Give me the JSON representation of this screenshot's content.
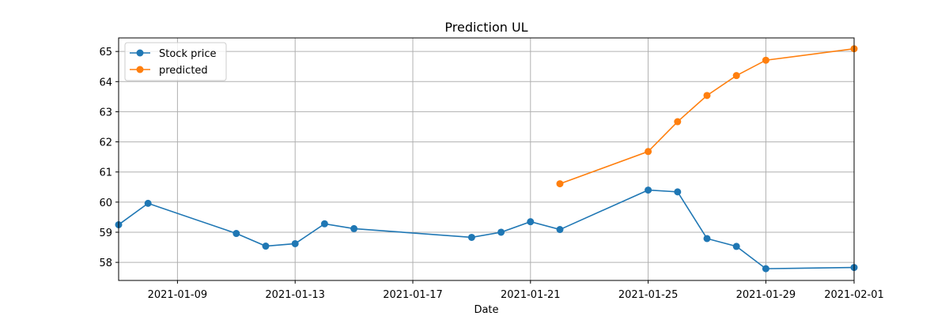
{
  "chart_data": {
    "type": "line",
    "title": "Prediction UL",
    "xlabel": "Date",
    "ylabel": "",
    "xlim": [
      "2021-01-07",
      "2021-02-01"
    ],
    "ylim": [
      57.4,
      65.45
    ],
    "x_ticks": [
      "2021-01-09",
      "2021-01-13",
      "2021-01-17",
      "2021-01-21",
      "2021-01-25",
      "2021-01-29",
      "2021-02-01"
    ],
    "y_ticks": [
      58,
      59,
      60,
      61,
      62,
      63,
      64,
      65
    ],
    "grid": true,
    "legend_position": "top-left",
    "series": [
      {
        "name": "Stock price",
        "color": "#1f77b4",
        "points": [
          {
            "x": "2021-01-07",
            "y": 59.25
          },
          {
            "x": "2021-01-08",
            "y": 59.96
          },
          {
            "x": "2021-01-11",
            "y": 58.96
          },
          {
            "x": "2021-01-12",
            "y": 58.54
          },
          {
            "x": "2021-01-13",
            "y": 58.62
          },
          {
            "x": "2021-01-14",
            "y": 59.28
          },
          {
            "x": "2021-01-15",
            "y": 59.12
          },
          {
            "x": "2021-01-19",
            "y": 58.83
          },
          {
            "x": "2021-01-20",
            "y": 59.0
          },
          {
            "x": "2021-01-21",
            "y": 59.35
          },
          {
            "x": "2021-01-22",
            "y": 59.09
          },
          {
            "x": "2021-01-25",
            "y": 60.4
          },
          {
            "x": "2021-01-26",
            "y": 60.34
          },
          {
            "x": "2021-01-27",
            "y": 58.79
          },
          {
            "x": "2021-01-28",
            "y": 58.53
          },
          {
            "x": "2021-01-29",
            "y": 57.79
          },
          {
            "x": "2021-02-01",
            "y": 57.83
          }
        ]
      },
      {
        "name": "predicted",
        "color": "#ff7f0e",
        "points": [
          {
            "x": "2021-01-22",
            "y": 60.61
          },
          {
            "x": "2021-01-25",
            "y": 61.68
          },
          {
            "x": "2021-01-26",
            "y": 62.67
          },
          {
            "x": "2021-01-27",
            "y": 63.54
          },
          {
            "x": "2021-01-28",
            "y": 64.2
          },
          {
            "x": "2021-01-29",
            "y": 64.71
          },
          {
            "x": "2021-02-01",
            "y": 65.09
          }
        ]
      }
    ]
  }
}
